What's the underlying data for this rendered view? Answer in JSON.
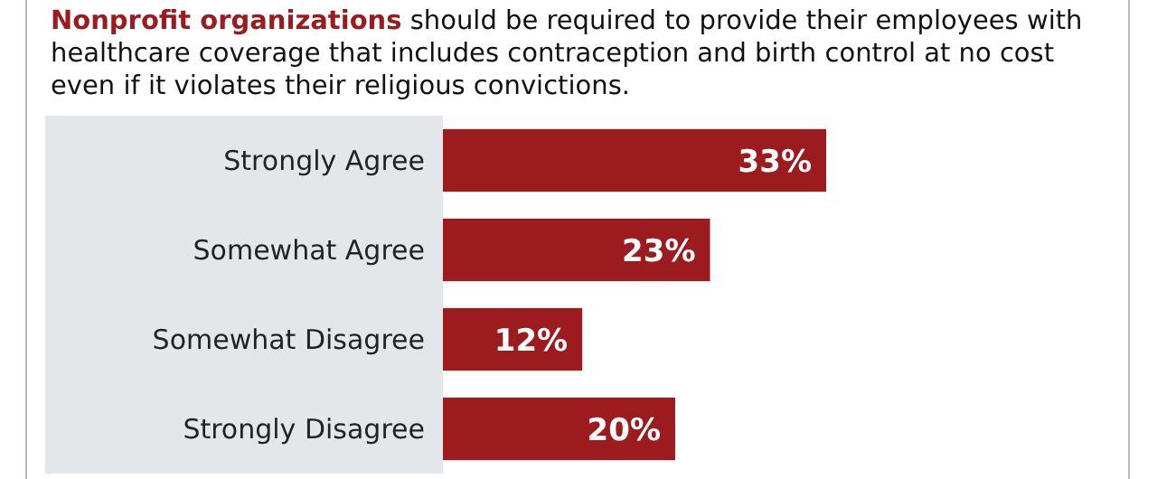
{
  "chart_data": {
    "type": "bar",
    "orientation": "horizontal",
    "title": "Nonprofit organizations",
    "subtitle": "should be required to provide their employees with healthcare coverage that includes contraception and birth control at no cost even if it violates their religious convictions.",
    "categories": [
      "Strongly Agree",
      "Somewhat Agree",
      "Somewhat Disagree",
      "Strongly Disagree"
    ],
    "values": [
      33,
      23,
      12,
      20
    ],
    "value_labels": [
      "33%",
      "23%",
      "12%",
      "20%"
    ],
    "color": "#9b1b1f"
  }
}
